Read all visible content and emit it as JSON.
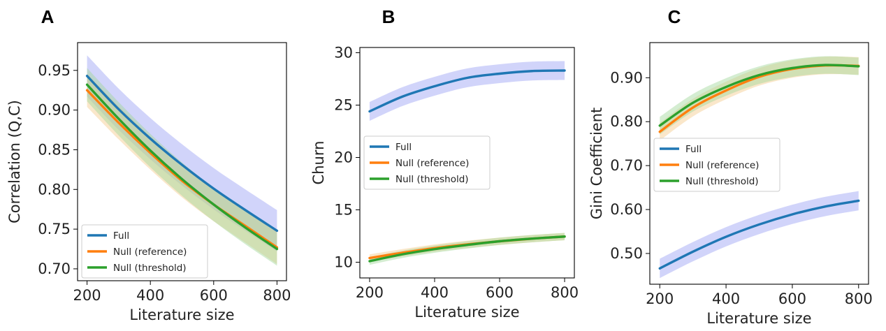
{
  "chart_data": [
    {
      "panel": "A",
      "type": "line",
      "xlabel": "Literature size",
      "ylabel": "Correlation (Q,C)",
      "xlim": [
        170,
        830
      ],
      "ylim": [
        0.685,
        0.985
      ],
      "xticks": [
        200,
        400,
        600,
        800
      ],
      "yticks": [
        0.7,
        0.75,
        0.8,
        0.85,
        0.9,
        0.95
      ],
      "legend_position": "lower-left",
      "series": [
        {
          "name": "Full",
          "color": "#1f77b4",
          "band_color": "#9aa0f5",
          "x": [
            200,
            300,
            400,
            500,
            600,
            700,
            800
          ],
          "y": [
            0.943,
            0.901,
            0.864,
            0.831,
            0.801,
            0.774,
            0.748
          ],
          "band": [
            0.026,
            0.026,
            0.026,
            0.026,
            0.026,
            0.026,
            0.026
          ]
        },
        {
          "name": "Null (reference)",
          "color": "#ff7f0e",
          "band_color": "#f5c98a",
          "x": [
            200,
            300,
            400,
            500,
            600,
            700,
            800
          ],
          "y": [
            0.925,
            0.884,
            0.846,
            0.811,
            0.781,
            0.754,
            0.727
          ],
          "band": [
            0.021,
            0.021,
            0.021,
            0.021,
            0.021,
            0.021,
            0.021
          ]
        },
        {
          "name": "Null (threshold)",
          "color": "#2ca02c",
          "band_color": "#9fd89a",
          "x": [
            200,
            300,
            400,
            500,
            600,
            700,
            800
          ],
          "y": [
            0.932,
            0.889,
            0.849,
            0.813,
            0.781,
            0.752,
            0.725
          ],
          "band": [
            0.021,
            0.021,
            0.021,
            0.021,
            0.021,
            0.021,
            0.021
          ]
        }
      ]
    },
    {
      "panel": "B",
      "type": "line",
      "xlabel": "Literature size",
      "ylabel": "Churn",
      "xlim": [
        170,
        830
      ],
      "ylim": [
        8.5,
        30.5
      ],
      "xticks": [
        200,
        400,
        600,
        800
      ],
      "yticks": [
        10,
        15,
        20,
        25,
        30
      ],
      "legend_position": "center-left",
      "series": [
        {
          "name": "Full",
          "color": "#1f77b4",
          "band_color": "#9aa0f5",
          "x": [
            200,
            300,
            400,
            500,
            600,
            700,
            800
          ],
          "y": [
            24.4,
            25.8,
            26.8,
            27.6,
            28.0,
            28.25,
            28.3
          ],
          "band": [
            0.9,
            0.9,
            0.9,
            0.9,
            0.9,
            0.9,
            0.9
          ]
        },
        {
          "name": "Null (reference)",
          "color": "#ff7f0e",
          "band_color": "#f5c98a",
          "x": [
            200,
            300,
            400,
            500,
            600,
            700,
            800
          ],
          "y": [
            10.4,
            10.9,
            11.35,
            11.7,
            12.0,
            12.25,
            12.45
          ],
          "band": [
            0.35,
            0.35,
            0.35,
            0.35,
            0.35,
            0.35,
            0.35
          ]
        },
        {
          "name": "Null (threshold)",
          "color": "#2ca02c",
          "band_color": "#9fd89a",
          "x": [
            200,
            300,
            400,
            500,
            600,
            700,
            800
          ],
          "y": [
            10.1,
            10.75,
            11.25,
            11.65,
            12.0,
            12.25,
            12.45
          ],
          "band": [
            0.35,
            0.35,
            0.35,
            0.35,
            0.35,
            0.35,
            0.35
          ]
        }
      ]
    },
    {
      "panel": "C",
      "type": "line",
      "xlabel": "Literature size",
      "ylabel": "Gini Coefficient",
      "xlim": [
        170,
        830
      ],
      "ylim": [
        0.43,
        0.98
      ],
      "xticks": [
        200,
        400,
        600,
        800
      ],
      "yticks": [
        0.5,
        0.6,
        0.7,
        0.8,
        0.9
      ],
      "legend_position": "center-left",
      "series": [
        {
          "name": "Full",
          "color": "#1f77b4",
          "band_color": "#9aa0f5",
          "x": [
            200,
            300,
            400,
            500,
            600,
            700,
            800
          ],
          "y": [
            0.466,
            0.504,
            0.538,
            0.566,
            0.589,
            0.607,
            0.62
          ],
          "band": [
            0.022,
            0.022,
            0.022,
            0.022,
            0.022,
            0.022,
            0.022
          ]
        },
        {
          "name": "Null (reference)",
          "color": "#ff7f0e",
          "band_color": "#f5c98a",
          "x": [
            200,
            300,
            400,
            500,
            600,
            700,
            800
          ],
          "y": [
            0.777,
            0.832,
            0.871,
            0.902,
            0.92,
            0.928,
            0.927
          ],
          "band": [
            0.02,
            0.02,
            0.02,
            0.02,
            0.02,
            0.02,
            0.02
          ]
        },
        {
          "name": "Null (threshold)",
          "color": "#2ca02c",
          "band_color": "#9fd89a",
          "x": [
            200,
            300,
            400,
            500,
            600,
            700,
            800
          ],
          "y": [
            0.791,
            0.843,
            0.879,
            0.906,
            0.922,
            0.929,
            0.926
          ],
          "band": [
            0.02,
            0.02,
            0.02,
            0.02,
            0.02,
            0.02,
            0.02
          ]
        }
      ]
    }
  ]
}
